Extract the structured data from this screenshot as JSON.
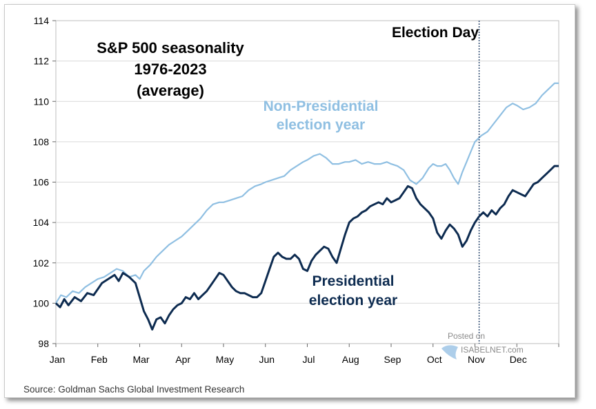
{
  "chart_data": {
    "type": "line",
    "title_lines": [
      "S&P 500 seasonality",
      "1976-2023",
      "(average)"
    ],
    "xlabel": "",
    "ylabel": "",
    "x_ticks": [
      "Jan",
      "Feb",
      "Mar",
      "Apr",
      "May",
      "Jun",
      "Jul",
      "Aug",
      "Sep",
      "Oct",
      "Nov",
      "Dec"
    ],
    "y_ticks": [
      98,
      100,
      102,
      104,
      106,
      108,
      110,
      112,
      114
    ],
    "ylim": [
      98,
      114
    ],
    "xlim_months": [
      0,
      12
    ],
    "grid": "horizontal",
    "series": [
      {
        "label_lines": [
          "Non-Presidential",
          "election year"
        ],
        "color": "#8fbfe2",
        "points": [
          [
            0.0,
            100.0
          ],
          [
            0.12,
            100.4
          ],
          [
            0.25,
            100.3
          ],
          [
            0.4,
            100.6
          ],
          [
            0.55,
            100.5
          ],
          [
            0.7,
            100.8
          ],
          [
            0.85,
            101.0
          ],
          [
            1.0,
            101.2
          ],
          [
            1.15,
            101.3
          ],
          [
            1.3,
            101.5
          ],
          [
            1.45,
            101.7
          ],
          [
            1.6,
            101.6
          ],
          [
            1.75,
            101.3
          ],
          [
            1.9,
            101.4
          ],
          [
            2.0,
            101.2
          ],
          [
            2.1,
            101.6
          ],
          [
            2.25,
            101.9
          ],
          [
            2.4,
            102.3
          ],
          [
            2.55,
            102.6
          ],
          [
            2.7,
            102.9
          ],
          [
            2.85,
            103.1
          ],
          [
            3.0,
            103.3
          ],
          [
            3.15,
            103.6
          ],
          [
            3.3,
            103.9
          ],
          [
            3.45,
            104.2
          ],
          [
            3.6,
            104.6
          ],
          [
            3.75,
            104.9
          ],
          [
            3.9,
            105.0
          ],
          [
            4.0,
            105.0
          ],
          [
            4.15,
            105.1
          ],
          [
            4.3,
            105.2
          ],
          [
            4.45,
            105.3
          ],
          [
            4.6,
            105.6
          ],
          [
            4.75,
            105.8
          ],
          [
            4.9,
            105.9
          ],
          [
            5.0,
            106.0
          ],
          [
            5.15,
            106.1
          ],
          [
            5.3,
            106.2
          ],
          [
            5.45,
            106.3
          ],
          [
            5.6,
            106.6
          ],
          [
            5.75,
            106.8
          ],
          [
            5.9,
            107.0
          ],
          [
            6.0,
            107.1
          ],
          [
            6.15,
            107.3
          ],
          [
            6.3,
            107.4
          ],
          [
            6.45,
            107.2
          ],
          [
            6.6,
            106.9
          ],
          [
            6.75,
            106.9
          ],
          [
            6.9,
            107.0
          ],
          [
            7.0,
            107.0
          ],
          [
            7.15,
            107.1
          ],
          [
            7.3,
            106.9
          ],
          [
            7.45,
            107.0
          ],
          [
            7.6,
            106.9
          ],
          [
            7.75,
            106.9
          ],
          [
            7.9,
            107.0
          ],
          [
            8.0,
            106.9
          ],
          [
            8.15,
            106.8
          ],
          [
            8.3,
            106.6
          ],
          [
            8.45,
            106.1
          ],
          [
            8.6,
            105.9
          ],
          [
            8.75,
            106.2
          ],
          [
            8.9,
            106.7
          ],
          [
            9.0,
            106.9
          ],
          [
            9.1,
            106.8
          ],
          [
            9.2,
            106.8
          ],
          [
            9.3,
            106.9
          ],
          [
            9.4,
            106.6
          ],
          [
            9.5,
            106.2
          ],
          [
            9.6,
            105.9
          ],
          [
            9.7,
            106.5
          ],
          [
            9.8,
            107.0
          ],
          [
            9.9,
            107.5
          ],
          [
            10.0,
            108.0
          ],
          [
            10.15,
            108.3
          ],
          [
            10.3,
            108.5
          ],
          [
            10.45,
            108.9
          ],
          [
            10.6,
            109.3
          ],
          [
            10.75,
            109.7
          ],
          [
            10.9,
            109.9
          ],
          [
            11.0,
            109.8
          ],
          [
            11.15,
            109.6
          ],
          [
            11.3,
            109.7
          ],
          [
            11.45,
            109.9
          ],
          [
            11.6,
            110.3
          ],
          [
            11.75,
            110.6
          ],
          [
            11.9,
            110.9
          ],
          [
            12.0,
            110.9
          ]
        ]
      },
      {
        "label_lines": [
          "Presidential",
          "election year"
        ],
        "color": "#0d2b50",
        "points": [
          [
            0.0,
            100.0
          ],
          [
            0.1,
            99.8
          ],
          [
            0.2,
            100.2
          ],
          [
            0.3,
            99.9
          ],
          [
            0.45,
            100.3
          ],
          [
            0.6,
            100.1
          ],
          [
            0.75,
            100.5
          ],
          [
            0.9,
            100.4
          ],
          [
            1.0,
            100.7
          ],
          [
            1.1,
            101.0
          ],
          [
            1.25,
            101.2
          ],
          [
            1.4,
            101.4
          ],
          [
            1.5,
            101.1
          ],
          [
            1.6,
            101.5
          ],
          [
            1.75,
            101.3
          ],
          [
            1.9,
            101.0
          ],
          [
            2.0,
            100.3
          ],
          [
            2.1,
            99.6
          ],
          [
            2.2,
            99.2
          ],
          [
            2.3,
            98.7
          ],
          [
            2.4,
            99.2
          ],
          [
            2.5,
            99.3
          ],
          [
            2.6,
            99.0
          ],
          [
            2.7,
            99.4
          ],
          [
            2.8,
            99.7
          ],
          [
            2.9,
            99.9
          ],
          [
            3.0,
            100.0
          ],
          [
            3.1,
            100.3
          ],
          [
            3.2,
            100.2
          ],
          [
            3.3,
            100.5
          ],
          [
            3.4,
            100.2
          ],
          [
            3.5,
            100.4
          ],
          [
            3.6,
            100.6
          ],
          [
            3.7,
            100.9
          ],
          [
            3.8,
            101.2
          ],
          [
            3.9,
            101.5
          ],
          [
            4.0,
            101.4
          ],
          [
            4.1,
            101.1
          ],
          [
            4.2,
            100.8
          ],
          [
            4.3,
            100.6
          ],
          [
            4.4,
            100.5
          ],
          [
            4.5,
            100.5
          ],
          [
            4.6,
            100.4
          ],
          [
            4.7,
            100.3
          ],
          [
            4.8,
            100.3
          ],
          [
            4.9,
            100.5
          ],
          [
            5.0,
            101.1
          ],
          [
            5.1,
            101.7
          ],
          [
            5.2,
            102.3
          ],
          [
            5.3,
            102.5
          ],
          [
            5.4,
            102.3
          ],
          [
            5.5,
            102.2
          ],
          [
            5.6,
            102.2
          ],
          [
            5.7,
            102.4
          ],
          [
            5.8,
            102.2
          ],
          [
            5.9,
            101.7
          ],
          [
            6.0,
            101.6
          ],
          [
            6.1,
            102.1
          ],
          [
            6.2,
            102.4
          ],
          [
            6.3,
            102.6
          ],
          [
            6.4,
            102.8
          ],
          [
            6.5,
            102.7
          ],
          [
            6.6,
            102.3
          ],
          [
            6.7,
            102.0
          ],
          [
            6.8,
            102.7
          ],
          [
            6.9,
            103.4
          ],
          [
            7.0,
            104.0
          ],
          [
            7.1,
            104.2
          ],
          [
            7.2,
            104.3
          ],
          [
            7.3,
            104.5
          ],
          [
            7.4,
            104.6
          ],
          [
            7.5,
            104.8
          ],
          [
            7.6,
            104.9
          ],
          [
            7.7,
            105.0
          ],
          [
            7.8,
            104.9
          ],
          [
            7.9,
            105.2
          ],
          [
            8.0,
            105.0
          ],
          [
            8.1,
            105.1
          ],
          [
            8.2,
            105.2
          ],
          [
            8.3,
            105.5
          ],
          [
            8.4,
            105.8
          ],
          [
            8.5,
            105.7
          ],
          [
            8.6,
            105.2
          ],
          [
            8.7,
            104.9
          ],
          [
            8.8,
            104.7
          ],
          [
            8.9,
            104.5
          ],
          [
            9.0,
            104.2
          ],
          [
            9.1,
            103.5
          ],
          [
            9.2,
            103.2
          ],
          [
            9.3,
            103.6
          ],
          [
            9.4,
            103.9
          ],
          [
            9.5,
            103.7
          ],
          [
            9.6,
            103.4
          ],
          [
            9.7,
            102.8
          ],
          [
            9.8,
            103.1
          ],
          [
            9.9,
            103.6
          ],
          [
            10.0,
            104.0
          ],
          [
            10.1,
            104.3
          ],
          [
            10.2,
            104.5
          ],
          [
            10.3,
            104.3
          ],
          [
            10.4,
            104.6
          ],
          [
            10.5,
            104.4
          ],
          [
            10.6,
            104.7
          ],
          [
            10.7,
            104.9
          ],
          [
            10.8,
            105.3
          ],
          [
            10.9,
            105.6
          ],
          [
            11.0,
            105.5
          ],
          [
            11.1,
            105.4
          ],
          [
            11.2,
            105.3
          ],
          [
            11.3,
            105.6
          ],
          [
            11.4,
            105.9
          ],
          [
            11.5,
            106.0
          ],
          [
            11.6,
            106.2
          ],
          [
            11.7,
            106.4
          ],
          [
            11.8,
            106.6
          ],
          [
            11.9,
            106.8
          ],
          [
            12.0,
            106.8
          ]
        ]
      }
    ],
    "event_line": {
      "label": "Election Day",
      "x_month": 10.1,
      "style": "dotted"
    }
  },
  "source": "Source: Goldman Sachs Global Investment Research",
  "watermark": {
    "line1": "Posted on",
    "line2": "ISABELNET.com"
  }
}
